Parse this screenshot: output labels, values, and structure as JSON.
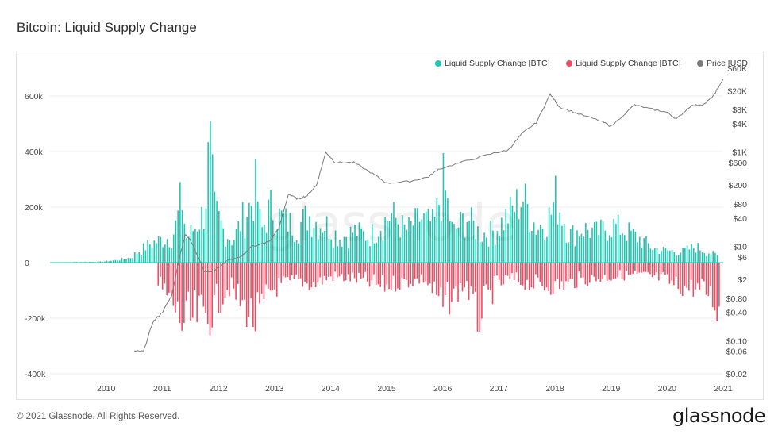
{
  "title": "Bitcoin: Liquid Supply Change",
  "footer": {
    "copyright": "© 2021 Glassnode. All Rights Reserved.",
    "brand": "glassnode"
  },
  "watermark": "glassnode",
  "colors": {
    "positive": "#1cc8b0",
    "negative": "#ee4c62",
    "price": "#7a7a7a",
    "grid": "#ececec"
  },
  "chart_data": {
    "type": "bar",
    "x_range": [
      "2009-01",
      "2021-01"
    ],
    "x_ticks": [
      "2010",
      "2011",
      "2012",
      "2013",
      "2014",
      "2015",
      "2016",
      "2017",
      "2018",
      "2019",
      "2020",
      "2021"
    ],
    "y_left": {
      "range": [
        -400000,
        700000
      ],
      "ticks": [
        -400000,
        -200000,
        0,
        200000,
        400000,
        600000
      ],
      "tick_labels": [
        "-400k",
        "-200k",
        "0",
        "200k",
        "400k",
        "600k"
      ]
    },
    "y_right": {
      "scale": "log",
      "range": [
        0.02,
        60000
      ],
      "ticks": [
        0.02,
        0.06,
        0.1,
        0.4,
        0.8,
        2,
        6,
        10,
        40,
        80,
        200,
        600,
        1000,
        4000,
        8000,
        20000,
        60000
      ],
      "tick_labels": [
        "$0.02",
        "$0.06",
        "$0.10",
        "$0.40",
        "$0.80",
        "$2",
        "$6",
        "$10",
        "$40",
        "$80",
        "$200",
        "$600",
        "$1K",
        "$4K",
        "$8K",
        "$20K",
        "$60K"
      ]
    },
    "legend": {
      "placement": "top-right"
    },
    "series": [
      {
        "name": "Liquid Supply Change [BTC]",
        "axis": "left",
        "sign": "positive",
        "points": [
          [
            "2009-01",
            0
          ],
          [
            "2009-06",
            3000
          ],
          [
            "2009-12",
            5000
          ],
          [
            "2010-03",
            12000
          ],
          [
            "2010-06",
            25000
          ],
          [
            "2010-08",
            60000
          ],
          [
            "2010-10",
            90000
          ],
          [
            "2010-12",
            110000
          ],
          [
            "2011-03",
            130000
          ],
          [
            "2011-04",
            200000
          ],
          [
            "2011-05",
            340000
          ],
          [
            "2011-06",
            120000
          ],
          [
            "2011-08",
            180000
          ],
          [
            "2011-10",
            260000
          ],
          [
            "2011-11",
            600000
          ],
          [
            "2011-12",
            270000
          ],
          [
            "2012-02",
            160000
          ],
          [
            "2012-04",
            110000
          ],
          [
            "2012-06",
            220000
          ],
          [
            "2012-08",
            300000
          ],
          [
            "2012-09",
            390000
          ],
          [
            "2012-10",
            150000
          ],
          [
            "2012-12",
            280000
          ],
          [
            "2013-02",
            230000
          ],
          [
            "2013-04",
            200000
          ],
          [
            "2013-06",
            180000
          ],
          [
            "2013-08",
            240000
          ],
          [
            "2013-10",
            200000
          ],
          [
            "2013-12",
            190000
          ],
          [
            "2014-03",
            120000
          ],
          [
            "2014-06",
            160000
          ],
          [
            "2014-09",
            130000
          ],
          [
            "2014-12",
            200000
          ],
          [
            "2015-02",
            240000
          ],
          [
            "2015-05",
            160000
          ],
          [
            "2015-08",
            220000
          ],
          [
            "2015-11",
            190000
          ],
          [
            "2016-01",
            400000
          ],
          [
            "2016-03",
            150000
          ],
          [
            "2016-06",
            230000
          ],
          [
            "2016-09",
            140000
          ],
          [
            "2016-12",
            160000
          ],
          [
            "2017-03",
            240000
          ],
          [
            "2017-06",
            330000
          ],
          [
            "2017-09",
            170000
          ],
          [
            "2017-12",
            240000
          ],
          [
            "2018-01",
            330000
          ],
          [
            "2018-04",
            140000
          ],
          [
            "2018-07",
            170000
          ],
          [
            "2018-10",
            150000
          ],
          [
            "2019-01",
            190000
          ],
          [
            "2019-04",
            160000
          ],
          [
            "2019-07",
            120000
          ],
          [
            "2019-10",
            70000
          ],
          [
            "2020-01",
            60000
          ],
          [
            "2020-04",
            55000
          ],
          [
            "2020-07",
            80000
          ],
          [
            "2020-10",
            50000
          ],
          [
            "2020-12",
            30000
          ]
        ]
      },
      {
        "name": "Liquid Supply Change [BTC]",
        "axis": "left",
        "sign": "negative",
        "points": [
          [
            "2010-12",
            -110000
          ],
          [
            "2011-03",
            -200000
          ],
          [
            "2011-05",
            -300000
          ],
          [
            "2011-06",
            -305000
          ],
          [
            "2011-09",
            -260000
          ],
          [
            "2011-11",
            -270000
          ],
          [
            "2012-03",
            -120000
          ],
          [
            "2012-07",
            -240000
          ],
          [
            "2012-09",
            -300000
          ],
          [
            "2012-12",
            -140000
          ],
          [
            "2013-03",
            -110000
          ],
          [
            "2013-06",
            -90000
          ],
          [
            "2013-09",
            -110000
          ],
          [
            "2014-01",
            -70000
          ],
          [
            "2014-06",
            -80000
          ],
          [
            "2014-12",
            -120000
          ],
          [
            "2015-04",
            -100000
          ],
          [
            "2015-09",
            -80000
          ],
          [
            "2016-01",
            -220000
          ],
          [
            "2016-06",
            -100000
          ],
          [
            "2016-08",
            -300000
          ],
          [
            "2016-12",
            -130000
          ],
          [
            "2017-03",
            -80000
          ],
          [
            "2017-08",
            -110000
          ],
          [
            "2018-01",
            -120000
          ],
          [
            "2018-06",
            -90000
          ],
          [
            "2019-01",
            -70000
          ],
          [
            "2019-06",
            -60000
          ],
          [
            "2019-12",
            -80000
          ],
          [
            "2020-03",
            -120000
          ],
          [
            "2020-07",
            -130000
          ],
          [
            "2020-10",
            -150000
          ],
          [
            "2020-12",
            -250000
          ]
        ]
      },
      {
        "name": "Price [USD]",
        "axis": "right",
        "type": "line",
        "points": [
          [
            "2010-07",
            0.06
          ],
          [
            "2010-09",
            0.06
          ],
          [
            "2010-11",
            0.25
          ],
          [
            "2011-01",
            0.4
          ],
          [
            "2011-03",
            0.9
          ],
          [
            "2011-05",
            8
          ],
          [
            "2011-06",
            18
          ],
          [
            "2011-07",
            14
          ],
          [
            "2011-10",
            3
          ],
          [
            "2011-12",
            3
          ],
          [
            "2012-03",
            5
          ],
          [
            "2012-06",
            6
          ],
          [
            "2012-08",
            10
          ],
          [
            "2012-10",
            11
          ],
          [
            "2012-12",
            13
          ],
          [
            "2013-02",
            25
          ],
          [
            "2013-04",
            130
          ],
          [
            "2013-06",
            100
          ],
          [
            "2013-08",
            120
          ],
          [
            "2013-10",
            200
          ],
          [
            "2013-12",
            1000
          ],
          [
            "2014-02",
            600
          ],
          [
            "2014-06",
            600
          ],
          [
            "2014-10",
            350
          ],
          [
            "2015-01",
            220
          ],
          [
            "2015-06",
            240
          ],
          [
            "2015-10",
            300
          ],
          [
            "2015-12",
            430
          ],
          [
            "2016-06",
            650
          ],
          [
            "2016-12",
            950
          ],
          [
            "2017-03",
            1100
          ],
          [
            "2017-06",
            2500
          ],
          [
            "2017-09",
            4200
          ],
          [
            "2017-12",
            17000
          ],
          [
            "2018-02",
            9000
          ],
          [
            "2018-06",
            6500
          ],
          [
            "2018-11",
            4500
          ],
          [
            "2019-01",
            3500
          ],
          [
            "2019-06",
            10000
          ],
          [
            "2019-10",
            8000
          ],
          [
            "2020-01",
            7000
          ],
          [
            "2020-03",
            5000
          ],
          [
            "2020-06",
            9500
          ],
          [
            "2020-09",
            10500
          ],
          [
            "2020-11",
            16000
          ],
          [
            "2020-12",
            24000
          ],
          [
            "2021-01",
            35000
          ]
        ]
      }
    ]
  }
}
